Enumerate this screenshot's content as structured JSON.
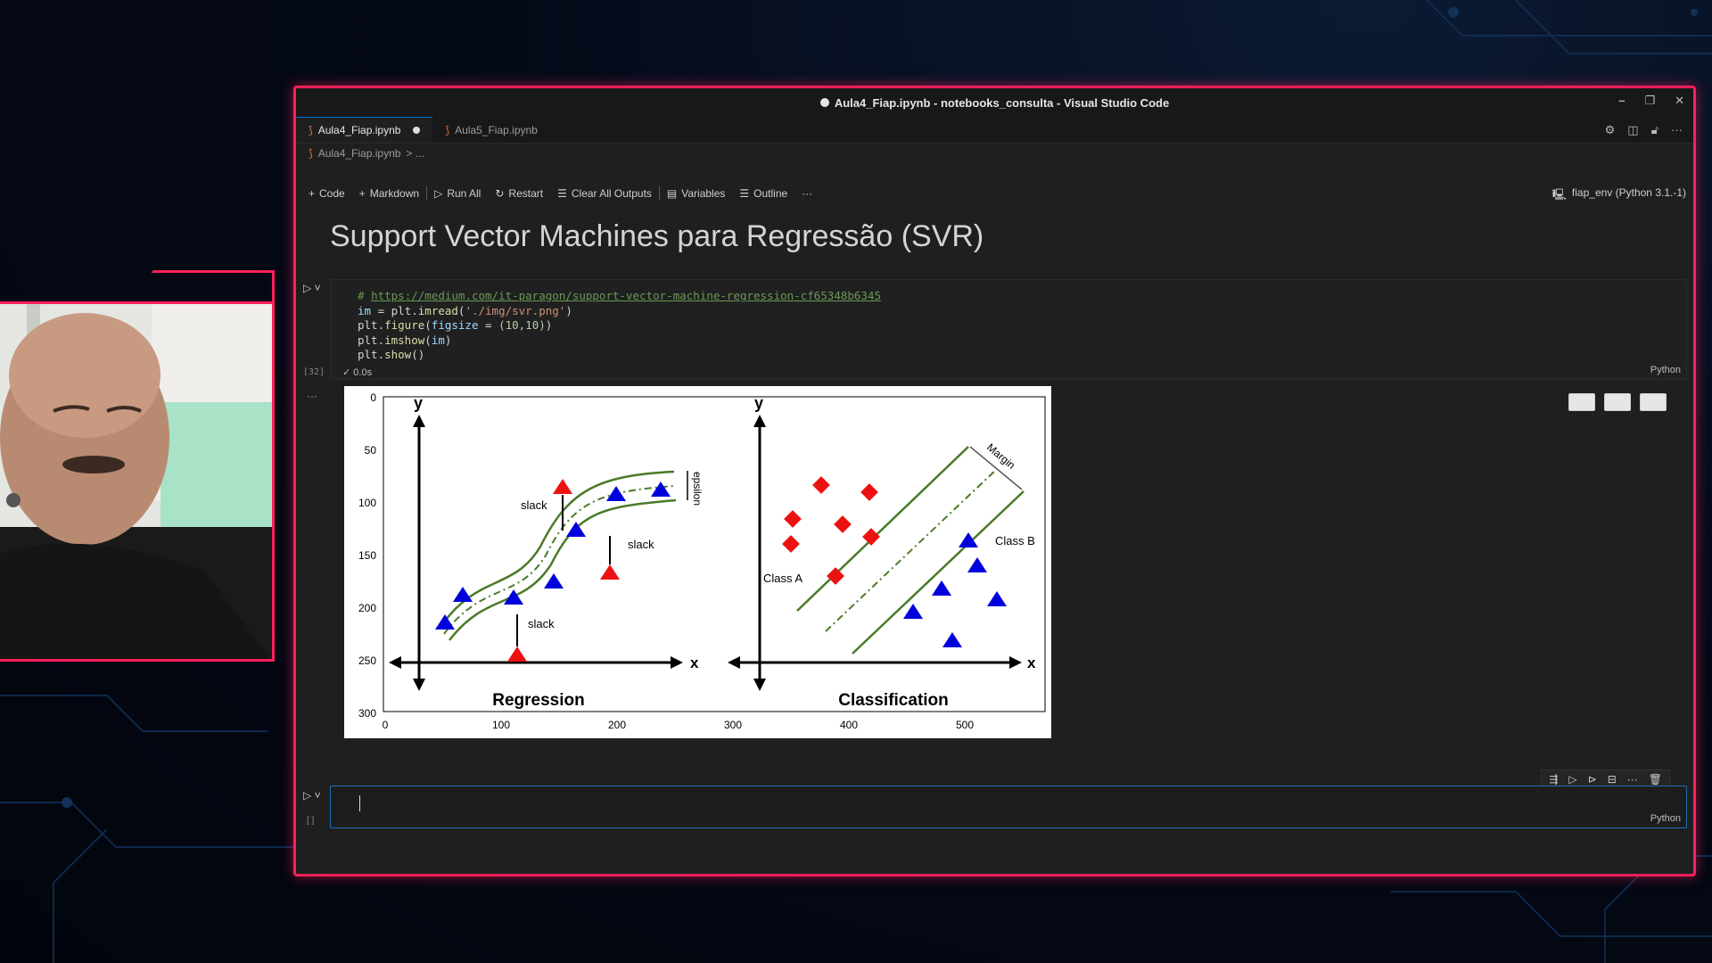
{
  "window": {
    "title": "Aula4_Fiap.ipynb - notebooks_consulta - Visual Studio Code"
  },
  "tabs": [
    {
      "label": "Aula4_Fiap.ipynb",
      "active": true,
      "modified": true
    },
    {
      "label": "Aula5_Fiap.ipynb",
      "active": false,
      "modified": false
    }
  ],
  "breadcrumb": {
    "file": "Aula4_Fiap.ipynb",
    "rest": "> ..."
  },
  "toolbar": {
    "code": "Code",
    "markdown": "Markdown",
    "run_all": "Run All",
    "restart": "Restart",
    "clear_outputs": "Clear All Outputs",
    "variables": "Variables",
    "outline": "Outline",
    "more": "···",
    "kernel": "fiap_env (Python 3.1.-1)"
  },
  "markdown": {
    "heading": "Support Vector Machines para Regressão (SVR)"
  },
  "code_cell": {
    "exec_count": "[32]",
    "exec_time": "0.0s",
    "language": "Python",
    "lines": {
      "comment_hash": "# ",
      "url": "https://medium.com/it-paragon/support-vector-machine-regression-cf65348b6345",
      "l2_var": "im",
      "l2_eq": " = plt.",
      "l2_fn": "imread",
      "l2_str": "'./img/svr.png'",
      "l3_pre": "plt.",
      "l3_fn": "figure",
      "l3_arg": "figsize",
      "l3_num": "(10,10)",
      "l4_pre": "plt.",
      "l4_fn": "imshow",
      "l4_arg": "im",
      "l5_pre": "plt.",
      "l5_fn": "show"
    }
  },
  "output_figure": {
    "left_title": "Regression",
    "right_title": "Classification",
    "x_axis_label": "x",
    "y_axis_label": "y",
    "labels": {
      "slack": "slack",
      "epsilon": "epsilon",
      "margin": "Margin",
      "class_a": "Class A",
      "class_b": "Class B"
    },
    "x_ticks": [
      "0",
      "100",
      "200",
      "300",
      "400",
      "500"
    ],
    "y_ticks": [
      "0",
      "50",
      "100",
      "150",
      "200",
      "250",
      "300"
    ]
  },
  "empty_cell": {
    "language": "Python",
    "bracket": "[ ]"
  },
  "colors": {
    "frame_accent": "#ff1f5a",
    "editor_bg": "#1f1f1f",
    "focus_border": "#1e6fb8"
  }
}
